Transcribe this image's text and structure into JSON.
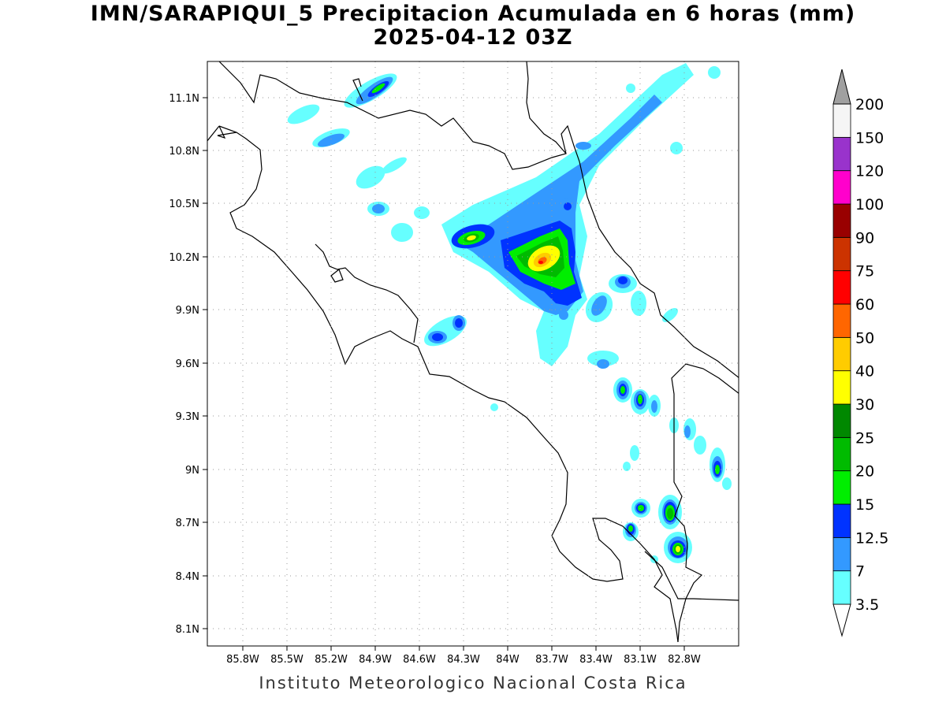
{
  "title": {
    "line1": "IMN/SARAPIQUI_5 Precipitacion Acumulada en 6 horas (mm)",
    "line2": "2025-04-12 03Z"
  },
  "footer": "Instituto Meteorologico Nacional Costa Rica",
  "map": {
    "lon_ticks": [
      "85.8W",
      "85.5W",
      "85.2W",
      "84.9W",
      "84.6W",
      "84.3W",
      "84W",
      "83.7W",
      "83.4W",
      "83.1W",
      "82.8W"
    ],
    "lat_ticks": [
      "11.1N",
      "10.8N",
      "10.5N",
      "10.2N",
      "9.9N",
      "9.6N",
      "9.3N",
      "9N",
      "8.7N",
      "8.4N",
      "8.1N"
    ],
    "grid": true,
    "lon_range": [
      -86.05,
      -83.05
    ],
    "lat_range": [
      8.0,
      11.3
    ]
  },
  "legend": {
    "levels": [
      "3.5",
      "7",
      "12.5",
      "15",
      "20",
      "25",
      "30",
      "40",
      "50",
      "60",
      "75",
      "90",
      "100",
      "120",
      "150",
      "200"
    ],
    "colors": [
      "#ffffff",
      "#66ffff",
      "#3399ff",
      "#0033ff",
      "#00ee00",
      "#00bb00",
      "#008800",
      "#ffff00",
      "#ffcc00",
      "#ff6600",
      "#ff0000",
      "#cc3300",
      "#990000",
      "#ff00cc",
      "#9933cc",
      "#f5f5f5",
      "#a0a0a0"
    ]
  },
  "precip_cells": [
    {
      "lon": -83.75,
      "lat": 10.18,
      "level": 40
    },
    {
      "lon": -83.7,
      "lat": 10.15,
      "level": 30
    },
    {
      "lon": -84.3,
      "lat": 10.28,
      "level": 30
    },
    {
      "lon": -83.05,
      "lat": 8.55,
      "level": 40
    },
    {
      "lon": -82.92,
      "lat": 8.73,
      "level": 25
    },
    {
      "lon": -83.23,
      "lat": 9.45,
      "level": 25
    },
    {
      "lon": -82.72,
      "lat": 9.0,
      "level": 25
    }
  ]
}
